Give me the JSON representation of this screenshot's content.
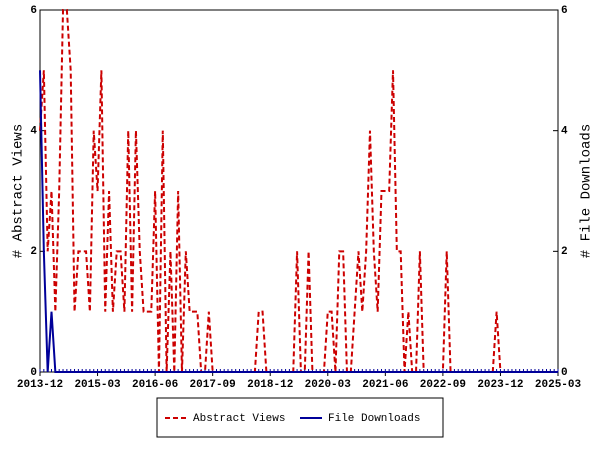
{
  "chart_data": {
    "type": "line",
    "y_label": "# Abstract Views",
    "y2_label": "# File Downloads",
    "x": [
      "2013-12",
      "2014-01",
      "2014-02",
      "2014-03",
      "2014-04",
      "2014-05",
      "2014-06",
      "2014-07",
      "2014-08",
      "2014-09",
      "2014-10",
      "2014-11",
      "2014-12",
      "2015-01",
      "2015-02",
      "2015-03",
      "2015-04",
      "2015-05",
      "2015-06",
      "2015-07",
      "2015-08",
      "2015-09",
      "2015-10",
      "2015-11",
      "2015-12",
      "2016-01",
      "2016-02",
      "2016-03",
      "2016-04",
      "2016-05",
      "2016-06",
      "2016-07",
      "2016-08",
      "2016-09",
      "2016-10",
      "2016-11",
      "2016-12",
      "2017-01",
      "2017-02",
      "2017-03",
      "2017-04",
      "2017-05",
      "2017-06",
      "2017-07",
      "2017-08",
      "2017-09",
      "2017-10",
      "2017-11",
      "2017-12",
      "2018-01",
      "2018-02",
      "2018-03",
      "2018-04",
      "2018-05",
      "2018-06",
      "2018-07",
      "2018-08",
      "2018-09",
      "2018-10",
      "2018-11",
      "2018-12",
      "2019-01",
      "2019-02",
      "2019-03",
      "2019-04",
      "2019-05",
      "2019-06",
      "2019-07",
      "2019-08",
      "2019-09",
      "2019-10",
      "2019-11",
      "2019-12",
      "2020-01",
      "2020-02",
      "2020-03",
      "2020-04",
      "2020-05",
      "2020-06",
      "2020-07",
      "2020-08",
      "2020-09",
      "2020-10",
      "2020-11",
      "2020-12",
      "2021-01",
      "2021-02",
      "2021-03",
      "2021-04",
      "2021-05",
      "2021-06",
      "2021-07",
      "2021-08",
      "2021-09",
      "2021-10",
      "2021-11",
      "2021-12",
      "2022-01",
      "2022-02",
      "2022-03",
      "2022-04",
      "2022-05",
      "2022-06",
      "2022-07",
      "2022-08",
      "2022-09",
      "2022-10",
      "2022-11",
      "2022-12",
      "2023-01",
      "2023-02",
      "2023-03",
      "2023-04",
      "2023-05",
      "2023-06",
      "2023-07",
      "2023-08",
      "2023-09",
      "2023-10",
      "2023-11",
      "2023-12",
      "2024-01",
      "2024-02",
      "2024-03",
      "2024-04",
      "2024-05",
      "2024-06",
      "2024-07",
      "2024-08",
      "2024-09",
      "2024-10",
      "2024-11",
      "2024-12",
      "2025-01",
      "2025-02",
      "2025-03"
    ],
    "series": [
      {
        "name": "Abstract Views",
        "color": "#cc0000",
        "dash": true,
        "values": [
          4,
          5,
          2,
          3,
          1,
          3,
          6,
          6,
          5,
          1,
          2,
          2,
          2,
          1,
          4,
          3,
          5,
          1,
          3,
          1,
          2,
          2,
          1,
          4,
          1,
          4,
          2,
          1,
          1,
          1,
          3,
          0,
          4,
          0,
          2,
          0,
          3,
          0,
          2,
          1,
          1,
          1,
          0,
          0,
          1,
          0,
          0,
          0,
          0,
          0,
          0,
          0,
          0,
          0,
          0,
          0,
          0,
          1,
          1,
          0,
          0,
          0,
          0,
          0,
          0,
          0,
          0,
          2,
          0,
          0,
          2,
          0,
          0,
          0,
          0,
          1,
          1,
          0,
          2,
          2,
          0,
          0,
          1,
          2,
          1,
          2,
          4,
          2,
          1,
          3,
          3,
          3,
          5,
          2,
          2,
          0,
          1,
          0,
          0,
          2,
          0,
          0,
          0,
          0,
          0,
          0,
          2,
          0,
          0,
          0,
          0,
          0,
          0,
          0,
          0,
          0,
          0,
          0,
          0,
          1,
          0,
          0,
          0,
          0,
          0,
          0,
          0,
          0,
          0,
          0,
          0,
          0,
          0,
          0,
          0,
          0
        ]
      },
      {
        "name": "File Downloads",
        "color": "#000099",
        "dash": false,
        "axis": "y2",
        "values": [
          5,
          2,
          0,
          1,
          0,
          0,
          0,
          0,
          0,
          0,
          0,
          0,
          0,
          0,
          0,
          0,
          0,
          0,
          0,
          0,
          0,
          0,
          0,
          0,
          0,
          0,
          0,
          0,
          0,
          0,
          0,
          0,
          0,
          0,
          0,
          0,
          0,
          0,
          0,
          0,
          0,
          0,
          0,
          0,
          0,
          0,
          0,
          0,
          0,
          0,
          0,
          0,
          0,
          0,
          0,
          0,
          0,
          0,
          0,
          0,
          0,
          0,
          0,
          0,
          0,
          0,
          0,
          0,
          0,
          0,
          0,
          0,
          0,
          0,
          0,
          0,
          0,
          0,
          0,
          0,
          0,
          0,
          0,
          0,
          0,
          0,
          0,
          0,
          0,
          0,
          0,
          0,
          0,
          0,
          0,
          0,
          0,
          0,
          0,
          0,
          0,
          0,
          0,
          0,
          0,
          0,
          0,
          0,
          0,
          0,
          0,
          0,
          0,
          0,
          0,
          0,
          0,
          0,
          0,
          0,
          0,
          0,
          0,
          0,
          0,
          0,
          0,
          0,
          0,
          0,
          0,
          0,
          0,
          0,
          0,
          0
        ]
      }
    ],
    "xlim": [
      "2013-12",
      "2025-03"
    ],
    "xticks": [
      "2013-12",
      "2015-03",
      "2016-06",
      "2017-09",
      "2018-12",
      "2020-03",
      "2021-06",
      "2022-09",
      "2023-12",
      "2025-03"
    ],
    "ylim": [
      0,
      6
    ],
    "yticks": [
      0,
      2,
      4,
      6
    ],
    "y2lim": [
      0,
      6
    ],
    "y2ticks": [
      0,
      2,
      4,
      6
    ],
    "legend": "bottom"
  }
}
